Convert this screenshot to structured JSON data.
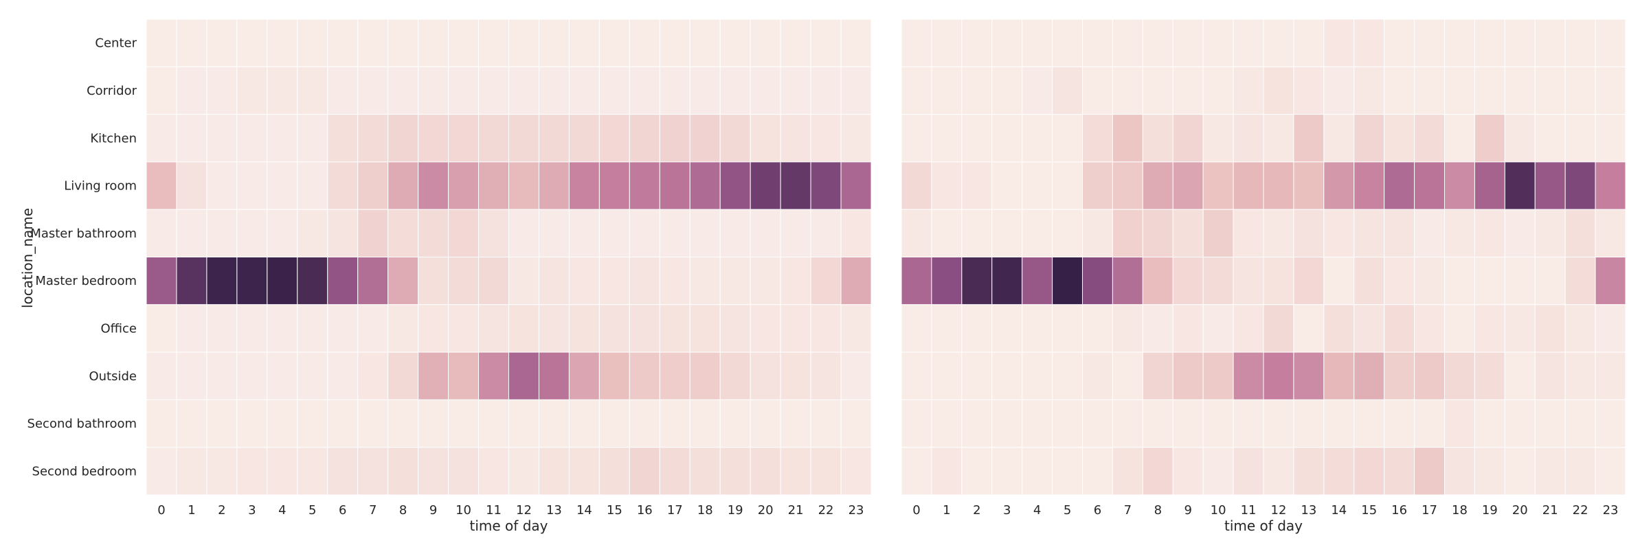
{
  "chart_data": {
    "type": "heatmap",
    "shared_ylabel": "location_name",
    "y_categories": [
      "Center",
      "Corridor",
      "Kitchen",
      "Living room",
      "Master bathroom",
      "Master bedroom",
      "Office",
      "Outside",
      "Second bathroom",
      "Second bedroom"
    ],
    "x_categories": [
      "0",
      "1",
      "2",
      "3",
      "4",
      "5",
      "6",
      "7",
      "8",
      "9",
      "10",
      "11",
      "12",
      "13",
      "14",
      "15",
      "16",
      "17",
      "18",
      "19",
      "20",
      "21",
      "22",
      "23"
    ],
    "color_scale": {
      "low": "#faf0eb",
      "mid1": "#eac0be",
      "mid2": "#c57e9e",
      "mid3": "#8b4e82",
      "high": "#2a1a3f"
    },
    "panels": [
      {
        "xlabel": "time of day",
        "values": [
          [
            0.02,
            0.02,
            0.02,
            0.02,
            0.02,
            0.02,
            0.02,
            0.02,
            0.02,
            0.02,
            0.02,
            0.02,
            0.02,
            0.02,
            0.02,
            0.02,
            0.02,
            0.02,
            0.02,
            0.02,
            0.02,
            0.02,
            0.02,
            0.02
          ],
          [
            0.02,
            0.03,
            0.03,
            0.04,
            0.04,
            0.04,
            0.03,
            0.03,
            0.03,
            0.03,
            0.03,
            0.03,
            0.03,
            0.03,
            0.03,
            0.03,
            0.03,
            0.03,
            0.03,
            0.03,
            0.03,
            0.03,
            0.03,
            0.03
          ],
          [
            0.03,
            0.03,
            0.03,
            0.03,
            0.03,
            0.03,
            0.09,
            0.11,
            0.14,
            0.13,
            0.13,
            0.12,
            0.12,
            0.12,
            0.12,
            0.13,
            0.14,
            0.15,
            0.15,
            0.12,
            0.07,
            0.06,
            0.05,
            0.04
          ],
          [
            0.26,
            0.08,
            0.03,
            0.03,
            0.03,
            0.03,
            0.11,
            0.17,
            0.33,
            0.45,
            0.37,
            0.32,
            0.27,
            0.33,
            0.48,
            0.5,
            0.52,
            0.55,
            0.6,
            0.72,
            0.82,
            0.85,
            0.78,
            0.62
          ],
          [
            0.03,
            0.03,
            0.03,
            0.03,
            0.03,
            0.04,
            0.06,
            0.15,
            0.1,
            0.11,
            0.13,
            0.08,
            0.03,
            0.03,
            0.03,
            0.03,
            0.03,
            0.03,
            0.03,
            0.03,
            0.03,
            0.03,
            0.03,
            0.05
          ],
          [
            0.68,
            0.88,
            0.95,
            0.95,
            0.96,
            0.92,
            0.72,
            0.58,
            0.33,
            0.09,
            0.11,
            0.12,
            0.04,
            0.06,
            0.05,
            0.05,
            0.06,
            0.05,
            0.04,
            0.04,
            0.04,
            0.05,
            0.13,
            0.33
          ],
          [
            0.02,
            0.03,
            0.03,
            0.03,
            0.03,
            0.03,
            0.03,
            0.03,
            0.04,
            0.05,
            0.05,
            0.06,
            0.07,
            0.06,
            0.07,
            0.08,
            0.08,
            0.07,
            0.07,
            0.06,
            0.05,
            0.05,
            0.05,
            0.04
          ],
          [
            0.03,
            0.03,
            0.03,
            0.03,
            0.03,
            0.03,
            0.03,
            0.05,
            0.12,
            0.31,
            0.27,
            0.45,
            0.62,
            0.55,
            0.35,
            0.25,
            0.2,
            0.18,
            0.18,
            0.12,
            0.08,
            0.07,
            0.06,
            0.03
          ],
          [
            0.02,
            0.02,
            0.02,
            0.02,
            0.02,
            0.02,
            0.02,
            0.02,
            0.02,
            0.02,
            0.02,
            0.02,
            0.02,
            0.02,
            0.02,
            0.02,
            0.02,
            0.02,
            0.02,
            0.02,
            0.02,
            0.02,
            0.02,
            0.02
          ],
          [
            0.03,
            0.04,
            0.04,
            0.05,
            0.05,
            0.05,
            0.08,
            0.08,
            0.09,
            0.08,
            0.08,
            0.05,
            0.04,
            0.07,
            0.07,
            0.09,
            0.14,
            0.11,
            0.09,
            0.09,
            0.09,
            0.07,
            0.07,
            0.05
          ]
        ]
      },
      {
        "xlabel": "time of day",
        "values": [
          [
            0.02,
            0.02,
            0.02,
            0.02,
            0.02,
            0.02,
            0.02,
            0.02,
            0.02,
            0.02,
            0.02,
            0.02,
            0.02,
            0.02,
            0.05,
            0.05,
            0.02,
            0.02,
            0.02,
            0.02,
            0.02,
            0.02,
            0.02,
            0.02
          ],
          [
            0.02,
            0.02,
            0.02,
            0.02,
            0.03,
            0.06,
            0.02,
            0.02,
            0.02,
            0.02,
            0.02,
            0.04,
            0.07,
            0.05,
            0.03,
            0.04,
            0.02,
            0.02,
            0.02,
            0.02,
            0.02,
            0.02,
            0.02,
            0.02
          ],
          [
            0.02,
            0.02,
            0.02,
            0.02,
            0.02,
            0.02,
            0.1,
            0.22,
            0.09,
            0.14,
            0.04,
            0.06,
            0.04,
            0.2,
            0.04,
            0.14,
            0.07,
            0.11,
            0.02,
            0.18,
            0.04,
            0.02,
            0.02,
            0.02
          ],
          [
            0.12,
            0.05,
            0.05,
            0.02,
            0.02,
            0.02,
            0.17,
            0.2,
            0.33,
            0.35,
            0.23,
            0.28,
            0.28,
            0.25,
            0.4,
            0.48,
            0.6,
            0.55,
            0.45,
            0.64,
            0.9,
            0.7,
            0.78,
            0.5
          ],
          [
            0.04,
            0.02,
            0.02,
            0.02,
            0.02,
            0.02,
            0.04,
            0.16,
            0.14,
            0.09,
            0.17,
            0.05,
            0.04,
            0.08,
            0.05,
            0.06,
            0.06,
            0.03,
            0.04,
            0.05,
            0.03,
            0.04,
            0.09,
            0.04
          ],
          [
            0.62,
            0.75,
            0.92,
            0.94,
            0.7,
            0.97,
            0.76,
            0.58,
            0.26,
            0.13,
            0.11,
            0.06,
            0.07,
            0.13,
            0.02,
            0.09,
            0.05,
            0.04,
            0.02,
            0.02,
            0.02,
            0.02,
            0.1,
            0.47
          ],
          [
            0.02,
            0.02,
            0.02,
            0.02,
            0.02,
            0.02,
            0.02,
            0.04,
            0.03,
            0.05,
            0.03,
            0.05,
            0.12,
            0.02,
            0.09,
            0.06,
            0.1,
            0.05,
            0.02,
            0.05,
            0.04,
            0.07,
            0.04,
            0.03
          ],
          [
            0.02,
            0.02,
            0.02,
            0.02,
            0.02,
            0.02,
            0.04,
            0.02,
            0.14,
            0.2,
            0.2,
            0.45,
            0.5,
            0.45,
            0.28,
            0.32,
            0.17,
            0.2,
            0.12,
            0.1,
            0.02,
            0.06,
            0.04,
            0.04
          ],
          [
            0.02,
            0.02,
            0.02,
            0.02,
            0.02,
            0.02,
            0.02,
            0.02,
            0.02,
            0.02,
            0.02,
            0.02,
            0.02,
            0.02,
            0.02,
            0.02,
            0.02,
            0.02,
            0.05,
            0.02,
            0.02,
            0.02,
            0.02,
            0.02
          ],
          [
            0.02,
            0.05,
            0.02,
            0.02,
            0.02,
            0.02,
            0.02,
            0.07,
            0.13,
            0.05,
            0.03,
            0.08,
            0.04,
            0.09,
            0.1,
            0.13,
            0.11,
            0.2,
            0.06,
            0.04,
            0.02,
            0.04,
            0.04,
            0.02
          ]
        ]
      }
    ]
  }
}
